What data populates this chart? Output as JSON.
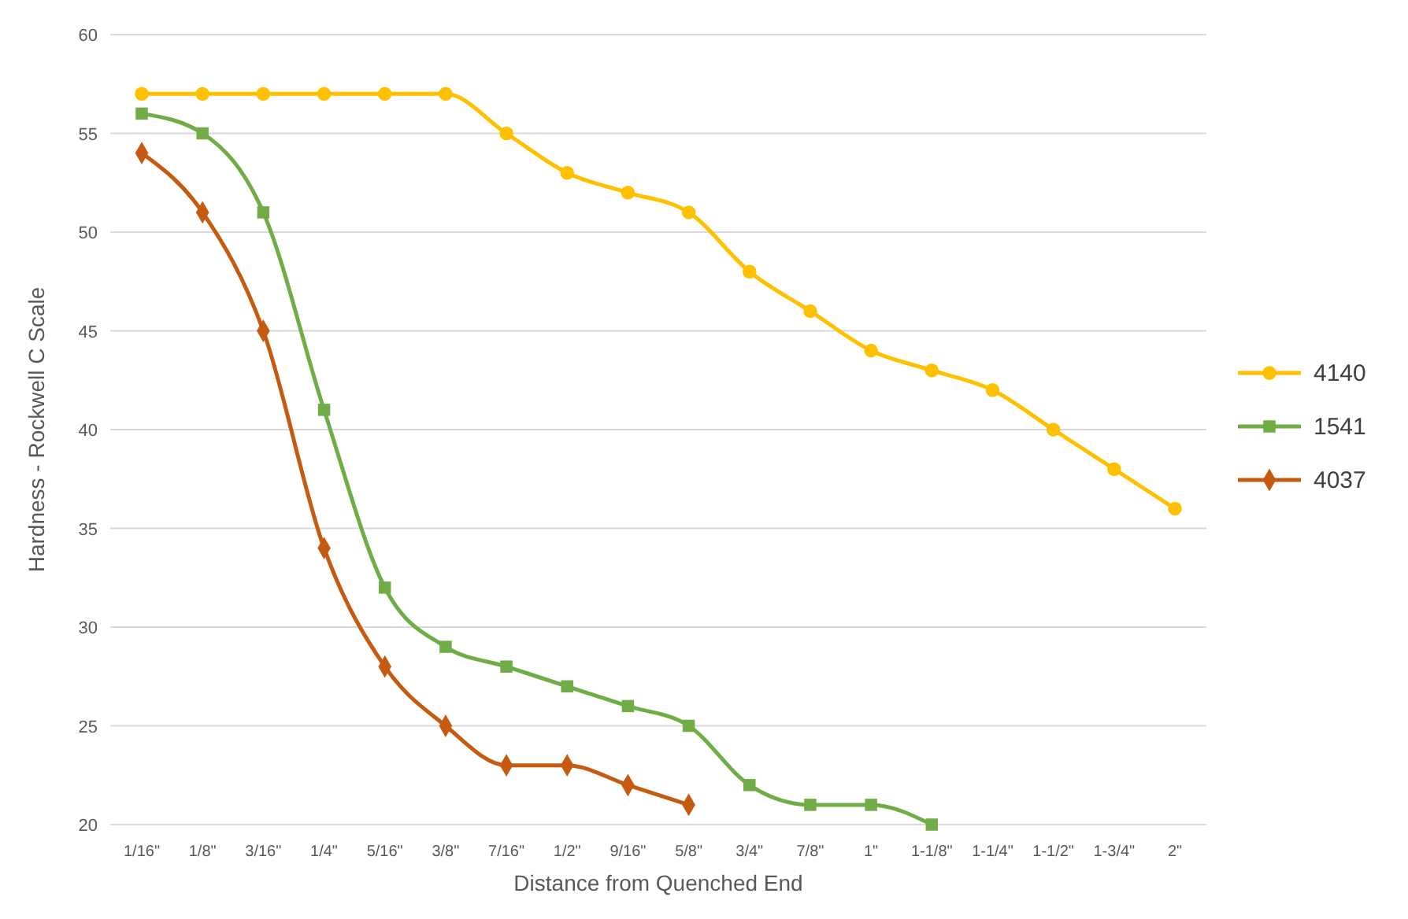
{
  "chart_data": {
    "type": "line",
    "xlabel": "Distance from Quenched End",
    "ylabel": "Hardness - Rockwell C Scale",
    "categories": [
      "1/16\"",
      "1/8\"",
      "3/16\"",
      "1/4\"",
      "5/16\"",
      "3/8\"",
      "7/16\"",
      "1/2\"",
      "9/16\"",
      "5/8\"",
      "3/4\"",
      "7/8\"",
      "1\"",
      "1-1/8\"",
      "1-1/4\"",
      "1-1/2\"",
      "1-3/4\"",
      "2\""
    ],
    "series": [
      {
        "name": "4140",
        "color": "#ffc000",
        "marker": "circle",
        "values": [
          57,
          57,
          57,
          57,
          57,
          57,
          55,
          53,
          52,
          51,
          48,
          46,
          44,
          43,
          42,
          40,
          38,
          36
        ]
      },
      {
        "name": "1541",
        "color": "#70ad47",
        "marker": "square",
        "values": [
          56,
          55,
          51,
          41,
          32,
          29,
          28,
          27,
          26,
          25,
          22,
          21,
          21,
          20,
          null,
          null,
          null,
          null
        ]
      },
      {
        "name": "4037",
        "color": "#c55a11",
        "marker": "diamond",
        "values": [
          54,
          51,
          45,
          34,
          28,
          25,
          23,
          23,
          22,
          21,
          null,
          null,
          null,
          null,
          null,
          null,
          null,
          null
        ]
      }
    ],
    "ylim": [
      20,
      60
    ],
    "yticks": [
      20,
      25,
      30,
      35,
      40,
      45,
      50,
      55,
      60
    ],
    "grid": "y",
    "legend": "right"
  }
}
